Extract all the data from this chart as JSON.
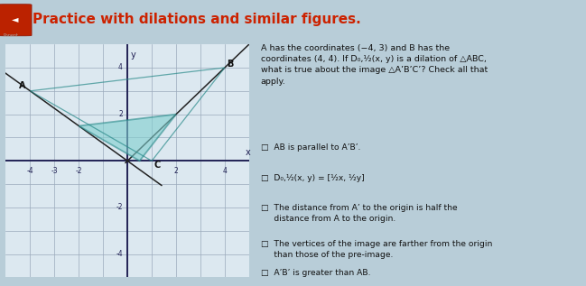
{
  "title": "Practice with dilations and similar figures.",
  "title_color": "#cc2200",
  "title_fontsize": 11,
  "header_bg": "#2c3a5c",
  "page_bg": "#b8cdd8",
  "graph_bg": "#dce8f0",
  "A": [
    -4,
    3
  ],
  "B": [
    4,
    4
  ],
  "C": [
    1,
    0
  ],
  "A_prime": [
    -2,
    1.5
  ],
  "B_prime": [
    2,
    2
  ],
  "C_prime": [
    0.5,
    0
  ],
  "triangle_fill": "#7ecece",
  "triangle_alpha": 0.6,
  "triangle_edge": "#2a8a8a",
  "ray_color": "#222222",
  "axis_color": "#222255",
  "grid_color": "#9aaabb",
  "xlim": [
    -5,
    5
  ],
  "ylim": [
    -5,
    5
  ],
  "q_text": "A has the coordinates (−4, 3) and B has the\ncoordinates (4, 4). If D₀,¹⁄₂(x, y) is a dilation of △ABC,\nwhat is true about the image △A’B’C’? Check all that\napply.",
  "checkboxes": [
    "□  AB is parallel to A’B’.",
    "□  D₀,¹⁄₂(x, y) = [¹⁄₂x, ¹⁄₂y]",
    "□  The distance from A’ to the origin is half the\n     distance from A to the origin.",
    "□  The vertices of the image are farther from the origin\n     than those of the pre-image.",
    "□  A’B’ is greater than AB."
  ]
}
